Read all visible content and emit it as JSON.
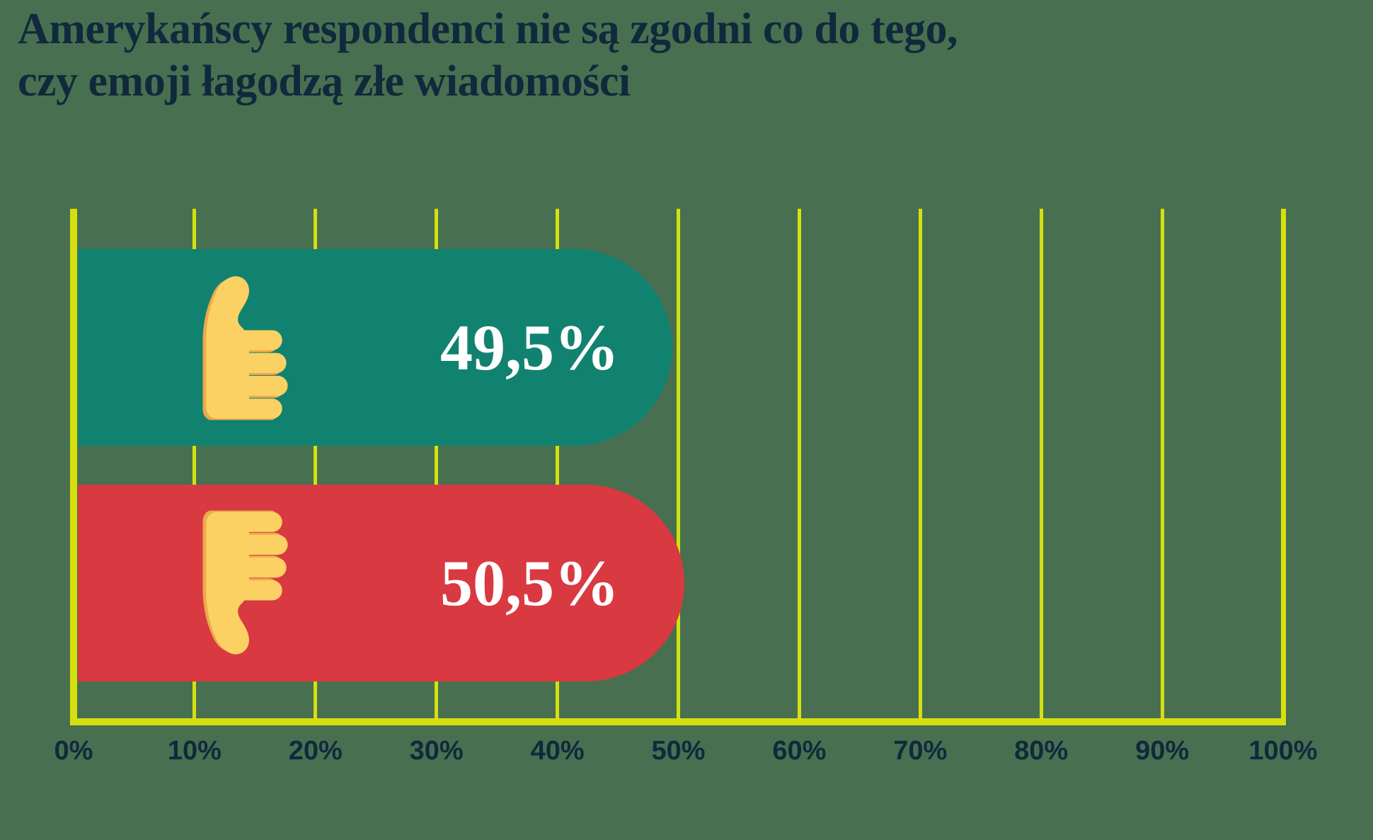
{
  "title": {
    "line1": "Amerykańscy respondenci nie są zgodni co do tego,",
    "line2": "czy emoji łagodzą złe wiadomości"
  },
  "chart_data": {
    "type": "bar",
    "orientation": "horizontal",
    "title": "Amerykańscy respondenci nie są zgodni co do tego, czy emoji łagodzą złe wiadomości",
    "categories": [
      "thumbs-up",
      "thumbs-down"
    ],
    "values": [
      49.5,
      50.5
    ],
    "value_labels": [
      "49,5%",
      "50,5%"
    ],
    "x_ticks": [
      "0%",
      "10%",
      "20%",
      "30%",
      "40%",
      "50%",
      "60%",
      "70%",
      "80%",
      "90%",
      "100%"
    ],
    "xlim": [
      0,
      100
    ],
    "grid": true,
    "legend": false,
    "xlabel": "",
    "ylabel": "",
    "colors": {
      "background": "#487050",
      "bar_thumbs_up": "#118270",
      "bar_thumbs_down": "#D93940",
      "grid": "#D5E00E",
      "title_text": "#11293C",
      "tick_text": "#11293C",
      "value_text": "#FFFFFF",
      "emoji_fill": "#FBD163",
      "emoji_shadow": "#EDA94D"
    }
  }
}
